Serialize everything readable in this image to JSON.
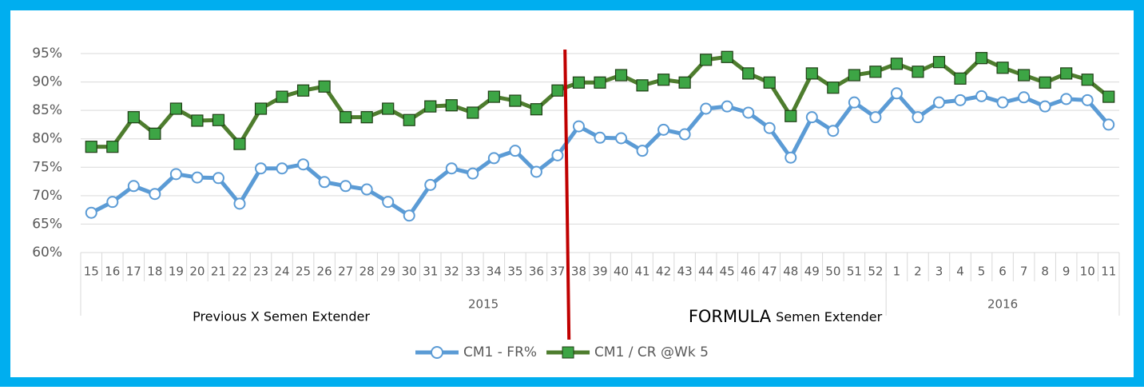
{
  "chart_data": {
    "type": "line",
    "categories": [
      "15",
      "16",
      "17",
      "18",
      "19",
      "20",
      "21",
      "22",
      "23",
      "24",
      "25",
      "26",
      "27",
      "28",
      "29",
      "30",
      "31",
      "32",
      "33",
      "34",
      "35",
      "36",
      "37",
      "38",
      "39",
      "40",
      "41",
      "42",
      "43",
      "44",
      "45",
      "46",
      "47",
      "48",
      "49",
      "50",
      "51",
      "52",
      "1",
      "2",
      "3",
      "4",
      "5",
      "6",
      "7",
      "8",
      "9",
      "10",
      "11"
    ],
    "groups": [
      {
        "label": "2015",
        "size": 38
      },
      {
        "label": "2016",
        "size": 11
      }
    ],
    "series": [
      {
        "name": "CM1 - FR%",
        "color": "#5b9bd5",
        "marker": "circle",
        "values": [
          67.0,
          68.9,
          71.7,
          70.3,
          73.8,
          73.2,
          73.1,
          68.6,
          74.8,
          74.8,
          75.5,
          72.4,
          71.7,
          71.1,
          68.9,
          66.5,
          71.9,
          74.8,
          73.9,
          76.6,
          77.9,
          74.2,
          77.1,
          82.2,
          80.2,
          80.1,
          77.9,
          81.6,
          80.8,
          85.3,
          85.7,
          84.6,
          81.9,
          76.7,
          83.8,
          81.4,
          86.4,
          83.8,
          88.0,
          83.8,
          86.4,
          86.8,
          87.5,
          86.4,
          87.3,
          85.7,
          87.0,
          86.8,
          82.5
        ]
      },
      {
        "name": "CM1 / CR @Wk 5",
        "color": "#4e7d2e",
        "marker": "square",
        "values": [
          78.6,
          78.6,
          83.8,
          80.9,
          85.3,
          83.2,
          83.3,
          79.1,
          85.3,
          87.4,
          88.5,
          89.2,
          83.8,
          83.8,
          85.3,
          83.3,
          85.7,
          85.9,
          84.6,
          87.4,
          86.7,
          85.2,
          88.5,
          89.9,
          89.9,
          91.2,
          89.4,
          90.4,
          89.9,
          93.9,
          94.4,
          91.5,
          89.9,
          84.0,
          91.5,
          89.0,
          91.2,
          91.8,
          93.2,
          91.8,
          93.5,
          90.6,
          94.2,
          92.5,
          91.2,
          89.9,
          91.5,
          90.4,
          87.4
        ]
      }
    ],
    "ylim": [
      60,
      95
    ],
    "yticks": [
      {
        "value": 60,
        "label": "60%"
      },
      {
        "value": 65,
        "label": "65%"
      },
      {
        "value": 70,
        "label": "70%"
      },
      {
        "value": 75,
        "label": "75%"
      },
      {
        "value": 80,
        "label": "80%"
      },
      {
        "value": 85,
        "label": "85%"
      },
      {
        "value": 90,
        "label": "90%"
      },
      {
        "value": 95,
        "label": "95%"
      }
    ],
    "grid": true,
    "legend": "bottom",
    "annotations": [
      {
        "text": "Previous X Semen Extender"
      },
      {
        "text": "FORMULA",
        "sub": "Semen Extender"
      }
    ]
  }
}
